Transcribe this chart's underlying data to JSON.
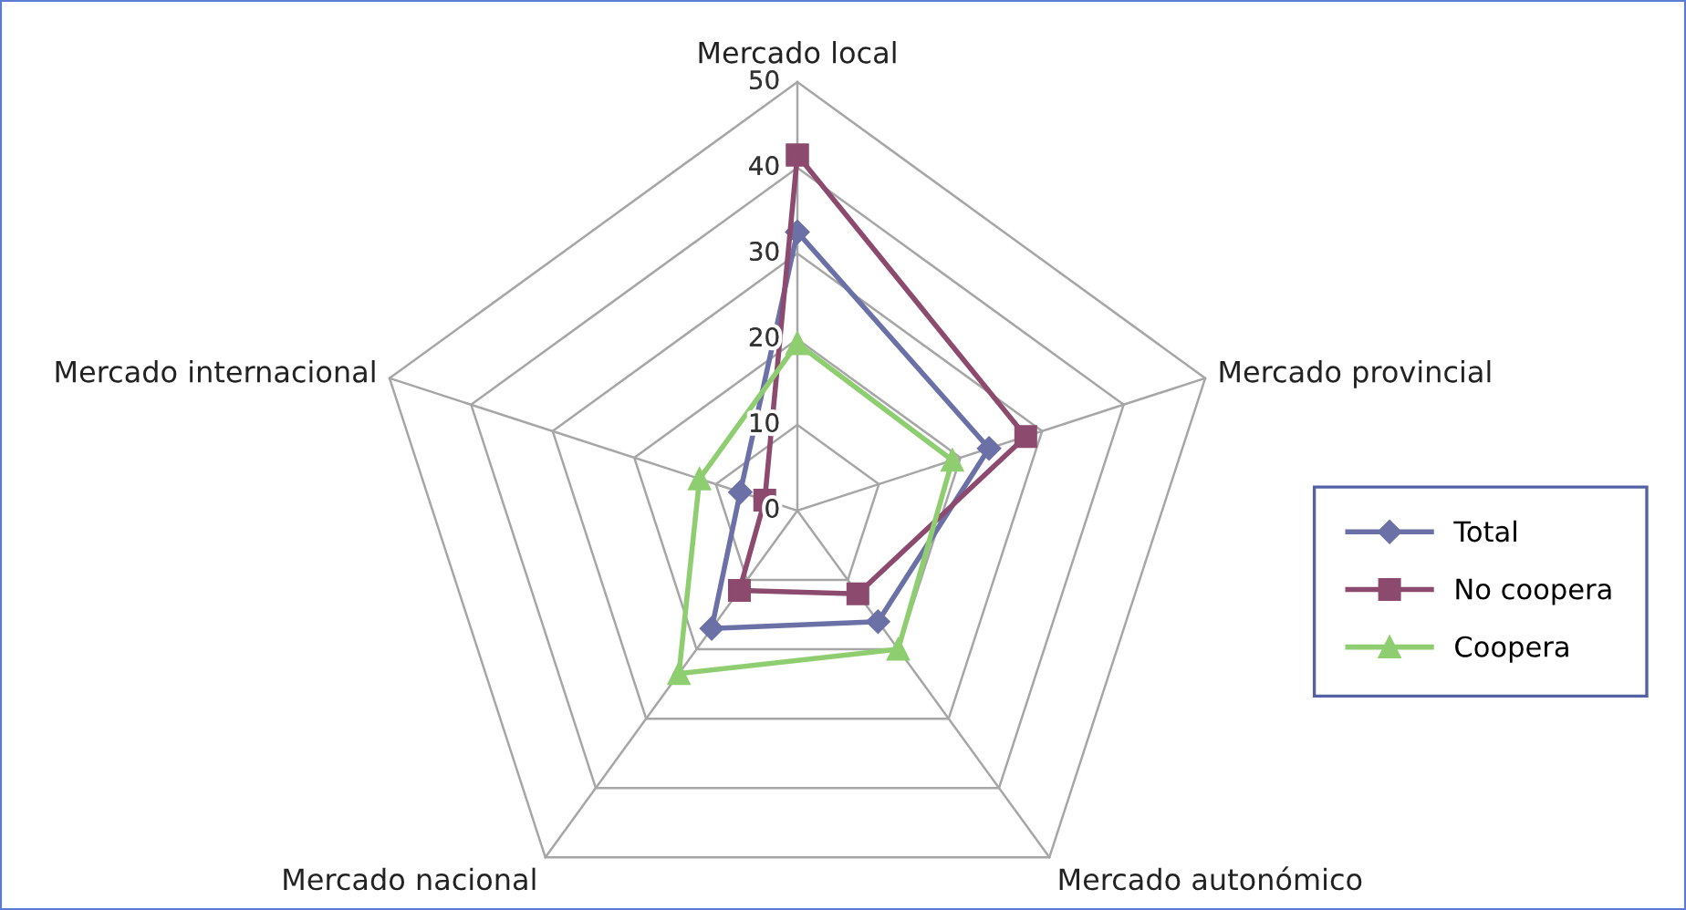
{
  "chart_data": {
    "type": "radar",
    "categories": [
      "Mercado local",
      "Mercado provincial",
      "Mercado autonómico",
      "Mercado nacional",
      "Mercado internacional"
    ],
    "series": [
      {
        "name": "Total",
        "color": "#6b70a6",
        "values": [
          32.5,
          23.5,
          16,
          17,
          7
        ]
      },
      {
        "name": "No coopera",
        "color": "#8c4a6e",
        "values": [
          41.5,
          28,
          12,
          11.5,
          4
        ]
      },
      {
        "name": "Coopera",
        "color": "#8fce70",
        "values": [
          19.5,
          19,
          20,
          23.5,
          12
        ]
      }
    ],
    "ylim": [
      0,
      50
    ],
    "yticks": [
      0,
      10,
      20,
      30,
      40,
      50
    ],
    "legend": "right",
    "marker": "diamond",
    "grid": true
  }
}
